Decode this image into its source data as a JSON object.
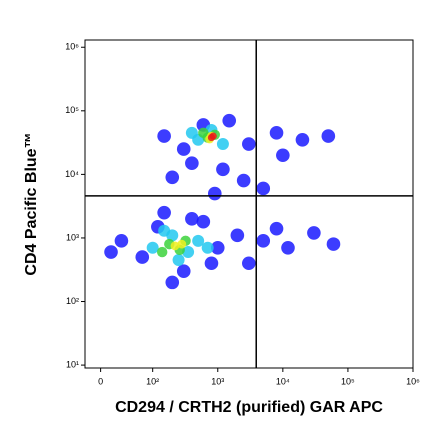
{
  "chart_data": {
    "type": "scatter",
    "x_label": "CD294 / CRTH2 (purified) GAR APC",
    "y_label": "CD4 Pacific Blue™",
    "xscale": "biexponential",
    "yscale": "log",
    "xlim": [
      -30,
      1000000
    ],
    "ylim": [
      9,
      1300000
    ],
    "xticks": [
      0,
      {
        "value": 100,
        "label": "10²"
      },
      {
        "value": 1000,
        "label": "10³"
      },
      {
        "value": 10000,
        "label": "10⁴"
      },
      {
        "value": 100000,
        "label": "10⁵"
      },
      {
        "value": 1000000,
        "label": "10⁶"
      }
    ],
    "yticks": [
      {
        "value": 10,
        "label": "10¹"
      },
      {
        "value": 100,
        "label": "10²"
      },
      {
        "value": 1000,
        "label": "10³"
      },
      {
        "value": 10000,
        "label": "10⁴"
      },
      {
        "value": 100000,
        "label": "10⁵"
      },
      {
        "value": 1000000,
        "label": "10⁶"
      }
    ],
    "gate": {
      "x": 3900,
      "y": 4600,
      "color": "#000000"
    },
    "series": [
      {
        "color": "#1a1aff",
        "x": [
          40,
          80,
          120,
          300,
          600,
          1000,
          2000,
          5000,
          12000,
          30000,
          60000,
          20,
          150,
          400,
          800,
          3000,
          8000,
          200,
          150,
          300,
          600,
          1500,
          3000,
          8000,
          20000,
          50000,
          400,
          1200,
          2500,
          5000,
          900,
          200,
          10000
        ],
        "y": [
          900,
          500,
          1500,
          300,
          1800,
          700,
          1100,
          900,
          700,
          1200,
          800,
          600,
          2500,
          2000,
          400,
          400,
          1400,
          200,
          40000,
          25000,
          60000,
          70000,
          30000,
          45000,
          35000,
          40000,
          15000,
          12000,
          8000,
          6000,
          5000,
          9000,
          20000
        ]
      },
      {
        "color": "#22c8f0",
        "x": [
          100,
          200,
          350,
          500,
          250,
          150,
          700,
          500,
          800,
          1200,
          400
        ],
        "y": [
          700,
          1100,
          600,
          900,
          450,
          1300,
          700,
          35000,
          50000,
          30000,
          45000
        ]
      },
      {
        "color": "#3cd23c",
        "x": [
          180,
          260,
          320,
          140,
          700,
          900,
          600
        ],
        "y": [
          800,
          650,
          900,
          600,
          38000,
          42000,
          45000
        ]
      },
      {
        "color": "#f0f020",
        "x": [
          220,
          280,
          800,
          750
        ],
        "y": [
          750,
          800,
          40000,
          36000
        ]
      },
      {
        "color": "#e81a1a",
        "x": [
          800,
          850
        ],
        "y": [
          38000,
          40000
        ]
      }
    ]
  }
}
